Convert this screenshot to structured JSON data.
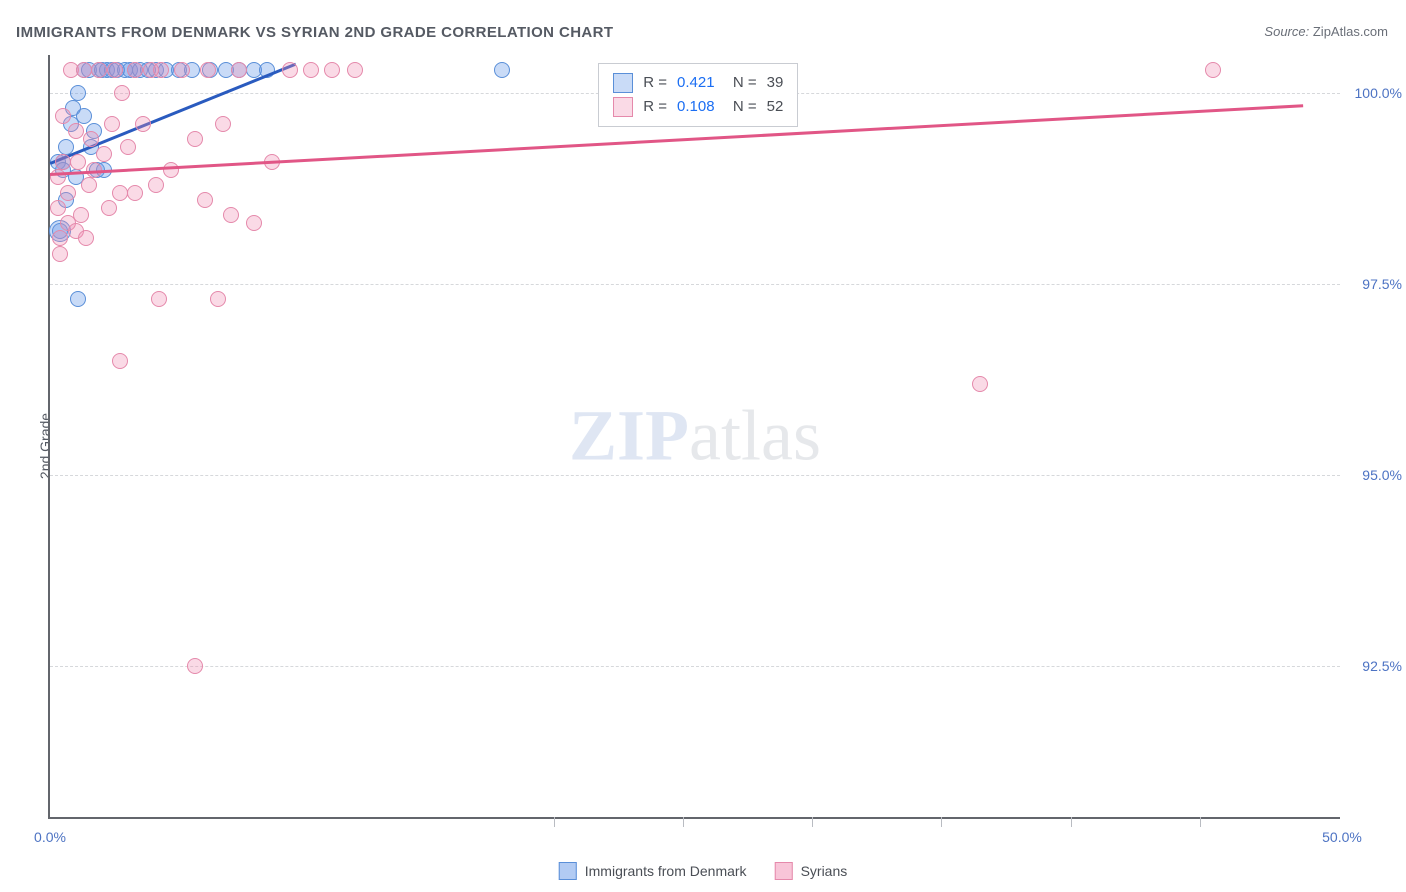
{
  "title": "IMMIGRANTS FROM DENMARK VS SYRIAN 2ND GRADE CORRELATION CHART",
  "source_label": "Source:",
  "source_value": "ZipAtlas.com",
  "y_axis_title": "2nd Grade",
  "watermark_bold": "ZIP",
  "watermark_rest": "atlas",
  "chart": {
    "type": "scatter",
    "xlim": [
      0,
      50
    ],
    "ylim": [
      90.5,
      100.5
    ],
    "x_ticks_major": [
      0,
      50
    ],
    "x_tick_labels": [
      "0.0%",
      "50.0%"
    ],
    "x_ticks_minor": [
      19.5,
      24.5,
      29.5,
      34.5,
      39.5,
      44.5
    ],
    "y_ticks": [
      92.5,
      95.0,
      97.5,
      100.0
    ],
    "y_tick_labels": [
      "92.5%",
      "95.0%",
      "97.5%",
      "100.0%"
    ],
    "grid_color": "#d6d8db",
    "axis_color": "#63666c",
    "background_color": "#ffffff",
    "tick_label_color": "#4d73c3",
    "marker_radius": 8,
    "marker_stroke_width": 1.5,
    "series": [
      {
        "name": "Immigrants from Denmark",
        "fill_color": "rgba(101,152,231,0.35)",
        "stroke_color": "#5a8fd8",
        "line_color": "#2a5bbf",
        "r_value": "0.421",
        "n_value": "39",
        "trend_line": {
          "x1": 0,
          "y1": 99.1,
          "x2": 9.5,
          "y2": 100.4
        },
        "points": [
          {
            "x": 0.3,
            "y": 99.1
          },
          {
            "x": 0.5,
            "y": 99.1
          },
          {
            "x": 0.6,
            "y": 99.3
          },
          {
            "x": 0.8,
            "y": 99.6
          },
          {
            "x": 0.5,
            "y": 99.0
          },
          {
            "x": 0.9,
            "y": 99.8
          },
          {
            "x": 1.1,
            "y": 100.0
          },
          {
            "x": 1.3,
            "y": 100.3
          },
          {
            "x": 1.5,
            "y": 100.3
          },
          {
            "x": 1.6,
            "y": 99.3
          },
          {
            "x": 1.8,
            "y": 99.0
          },
          {
            "x": 1.9,
            "y": 100.3
          },
          {
            "x": 2.0,
            "y": 100.3
          },
          {
            "x": 2.2,
            "y": 100.3
          },
          {
            "x": 2.4,
            "y": 100.3
          },
          {
            "x": 2.6,
            "y": 100.3
          },
          {
            "x": 2.9,
            "y": 100.3
          },
          {
            "x": 3.1,
            "y": 100.3
          },
          {
            "x": 3.3,
            "y": 100.3
          },
          {
            "x": 3.5,
            "y": 100.3
          },
          {
            "x": 3.8,
            "y": 100.3
          },
          {
            "x": 4.1,
            "y": 100.3
          },
          {
            "x": 4.5,
            "y": 100.3
          },
          {
            "x": 5.0,
            "y": 100.3
          },
          {
            "x": 5.5,
            "y": 100.3
          },
          {
            "x": 6.2,
            "y": 100.3
          },
          {
            "x": 6.8,
            "y": 100.3
          },
          {
            "x": 7.3,
            "y": 100.3
          },
          {
            "x": 7.9,
            "y": 100.3
          },
          {
            "x": 8.4,
            "y": 100.3
          },
          {
            "x": 1.3,
            "y": 99.7
          },
          {
            "x": 1.7,
            "y": 99.5
          },
          {
            "x": 2.1,
            "y": 99.0
          },
          {
            "x": 0.4,
            "y": 98.2
          },
          {
            "x": 0.4,
            "y": 98.2,
            "r": 11
          },
          {
            "x": 1.1,
            "y": 97.3
          },
          {
            "x": 0.6,
            "y": 98.6
          },
          {
            "x": 1.0,
            "y": 98.9
          },
          {
            "x": 17.5,
            "y": 100.3
          }
        ]
      },
      {
        "name": "Syrians",
        "fill_color": "rgba(241,140,177,0.32)",
        "stroke_color": "#e589ab",
        "line_color": "#e15686",
        "r_value": "0.108",
        "n_value": "52",
        "trend_line": {
          "x1": 0,
          "y1": 98.95,
          "x2": 48.5,
          "y2": 99.85
        },
        "points": [
          {
            "x": 0.3,
            "y": 98.9
          },
          {
            "x": 0.5,
            "y": 99.7
          },
          {
            "x": 0.7,
            "y": 98.7
          },
          {
            "x": 0.8,
            "y": 100.3
          },
          {
            "x": 1.0,
            "y": 99.5
          },
          {
            "x": 1.2,
            "y": 98.4
          },
          {
            "x": 1.3,
            "y": 100.3
          },
          {
            "x": 1.5,
            "y": 98.8
          },
          {
            "x": 1.7,
            "y": 99.0
          },
          {
            "x": 1.9,
            "y": 100.3
          },
          {
            "x": 2.1,
            "y": 99.2
          },
          {
            "x": 2.3,
            "y": 98.5
          },
          {
            "x": 2.5,
            "y": 100.3
          },
          {
            "x": 2.8,
            "y": 100.0
          },
          {
            "x": 3.0,
            "y": 99.3
          },
          {
            "x": 3.3,
            "y": 100.3
          },
          {
            "x": 3.6,
            "y": 99.6
          },
          {
            "x": 3.9,
            "y": 100.3
          },
          {
            "x": 4.3,
            "y": 100.3
          },
          {
            "x": 4.7,
            "y": 99.0
          },
          {
            "x": 5.1,
            "y": 100.3
          },
          {
            "x": 5.6,
            "y": 99.4
          },
          {
            "x": 6.1,
            "y": 100.3
          },
          {
            "x": 6.7,
            "y": 99.6
          },
          {
            "x": 7.3,
            "y": 100.3
          },
          {
            "x": 7.9,
            "y": 98.3
          },
          {
            "x": 8.6,
            "y": 99.1
          },
          {
            "x": 9.3,
            "y": 100.3
          },
          {
            "x": 10.1,
            "y": 100.3
          },
          {
            "x": 10.9,
            "y": 100.3
          },
          {
            "x": 11.8,
            "y": 100.3
          },
          {
            "x": 0.4,
            "y": 98.1
          },
          {
            "x": 0.7,
            "y": 98.3
          },
          {
            "x": 1.0,
            "y": 98.2
          },
          {
            "x": 1.4,
            "y": 98.1
          },
          {
            "x": 0.4,
            "y": 97.9
          },
          {
            "x": 2.7,
            "y": 98.7
          },
          {
            "x": 3.3,
            "y": 98.7
          },
          {
            "x": 4.1,
            "y": 98.8
          },
          {
            "x": 6.0,
            "y": 98.6
          },
          {
            "x": 7.0,
            "y": 98.4
          },
          {
            "x": 4.2,
            "y": 97.3
          },
          {
            "x": 6.5,
            "y": 97.3
          },
          {
            "x": 2.7,
            "y": 96.5
          },
          {
            "x": 5.6,
            "y": 92.5
          },
          {
            "x": 36.0,
            "y": 96.2
          },
          {
            "x": 45.0,
            "y": 100.3
          },
          {
            "x": 0.5,
            "y": 99.1
          },
          {
            "x": 1.1,
            "y": 99.1
          },
          {
            "x": 1.6,
            "y": 99.4
          },
          {
            "x": 2.4,
            "y": 99.6
          },
          {
            "x": 0.3,
            "y": 98.5
          }
        ]
      }
    ]
  },
  "stats_box": {
    "left_pct": 42.5,
    "top_pct": 1
  },
  "bottom_legend": [
    {
      "label": "Immigrants from Denmark",
      "fill": "rgba(101,152,231,0.5)",
      "stroke": "#5a8fd8"
    },
    {
      "label": "Syrians",
      "fill": "rgba(241,140,177,0.5)",
      "stroke": "#e589ab"
    }
  ]
}
